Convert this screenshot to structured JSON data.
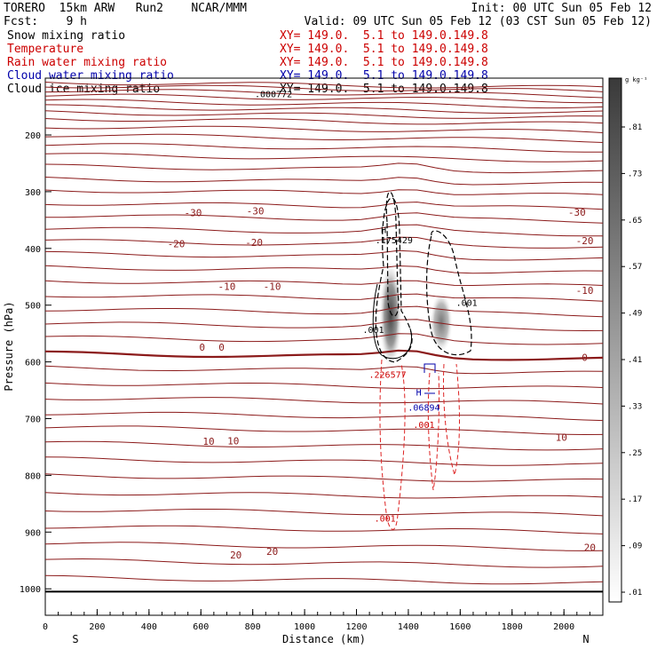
{
  "header": {
    "model": "TORERO  15km ARW   Run2    NCAR/MMM",
    "init": "Init: 00 UTC Sun 05 Feb 12",
    "fcst": "Fcst:    9 h",
    "valid": "Valid: 09 UTC Sun 05 Feb 12 (03 CST Sun 05 Feb 12)"
  },
  "legend": [
    {
      "label": "Snow mixing ratio",
      "xy": "",
      "color": "#000000"
    },
    {
      "label": "Temperature",
      "xy": "XY= 149.0.  5.1 to 149.0.149.8",
      "color": "#cc0000"
    },
    {
      "label": "Rain water mixing ratio",
      "xy": "XY= 149.0.  5.1 to 149.0.149.8",
      "color": "#cc0000"
    },
    {
      "label": "Cloud water mixing ratio",
      "xy": "XY= 149.0.  5.1 to 149.0.149.8",
      "color": "#0000aa"
    },
    {
      "label": "Cloud ice mixing ratio",
      "xy": "XY= 149.0.  5.1 to 149.0.149.8",
      "color": "#000000"
    }
  ],
  "snow_xy": "XY= 149.0.  5.1 to 149.0.149.8",
  "chart_data": {
    "type": "cross-section",
    "xlabel": "Distance (km)",
    "ylabel": "Pressure (hPa)",
    "x_ticks": [
      0,
      200,
      400,
      600,
      800,
      1000,
      1200,
      1400,
      1600,
      1800,
      2000
    ],
    "y_ticks": [
      200,
      300,
      400,
      500,
      600,
      700,
      800,
      900,
      1000
    ],
    "xlim": [
      0,
      2150
    ],
    "ylim": [
      1050,
      110
    ],
    "side_labels": {
      "left": "S",
      "right": "N"
    },
    "colorbar": {
      "units": "g kg⁻¹",
      "ticks": [
        ".01",
        ".09",
        ".17",
        ".25",
        ".33",
        ".41",
        ".49",
        ".57",
        ".65",
        ".73",
        ".81"
      ]
    },
    "temperature_labels": [
      {
        "text": "-30",
        "x": 570,
        "p": 337
      },
      {
        "text": "-30",
        "x": 810,
        "p": 334
      },
      {
        "text": "-30",
        "x": 2050,
        "p": 336
      },
      {
        "text": "-20",
        "x": 505,
        "p": 392
      },
      {
        "text": "-20",
        "x": 805,
        "p": 389
      },
      {
        "text": "-20",
        "x": 2080,
        "p": 386
      },
      {
        "text": "-10",
        "x": 700,
        "p": 467
      },
      {
        "text": "-10",
        "x": 875,
        "p": 467
      },
      {
        "text": "-10",
        "x": 2080,
        "p": 474
      },
      {
        "text": "0",
        "x": 605,
        "p": 574
      },
      {
        "text": "0",
        "x": 680,
        "p": 574
      },
      {
        "text": "0",
        "x": 2080,
        "p": 592
      },
      {
        "text": "10",
        "x": 630,
        "p": 740
      },
      {
        "text": "10",
        "x": 725,
        "p": 739
      },
      {
        "text": "10",
        "x": 1990,
        "p": 733
      },
      {
        "text": "20",
        "x": 735,
        "p": 940
      },
      {
        "text": "20",
        "x": 875,
        "p": 934
      },
      {
        "text": "20",
        "x": 2100,
        "p": 927
      }
    ],
    "other_labels": [
      {
        "text": ".000772",
        "x": 880,
        "p": 127,
        "color": "#000000"
      },
      {
        "text": "H",
        "x": 1305,
        "p": 367,
        "color": "#000000"
      },
      {
        "text": ".175429",
        "x": 1345,
        "p": 385,
        "color": "#000000"
      },
      {
        "text": ".001",
        "x": 1625,
        "p": 495,
        "color": "#000000"
      },
      {
        "text": ".001",
        "x": 1265,
        "p": 543,
        "color": "#000000"
      },
      {
        "text": ".226577",
        "x": 1320,
        "p": 622,
        "color": "#cc0000"
      },
      {
        "text": "H",
        "x": 1440,
        "p": 653,
        "color": "#0000aa"
      },
      {
        "text": ".06894",
        "x": 1460,
        "p": 680,
        "color": "#0000aa"
      },
      {
        "text": ".001",
        "x": 1460,
        "p": 710,
        "color": "#cc0000"
      },
      {
        "text": ".001",
        "x": 1310,
        "p": 875,
        "color": "#cc0000"
      }
    ]
  }
}
